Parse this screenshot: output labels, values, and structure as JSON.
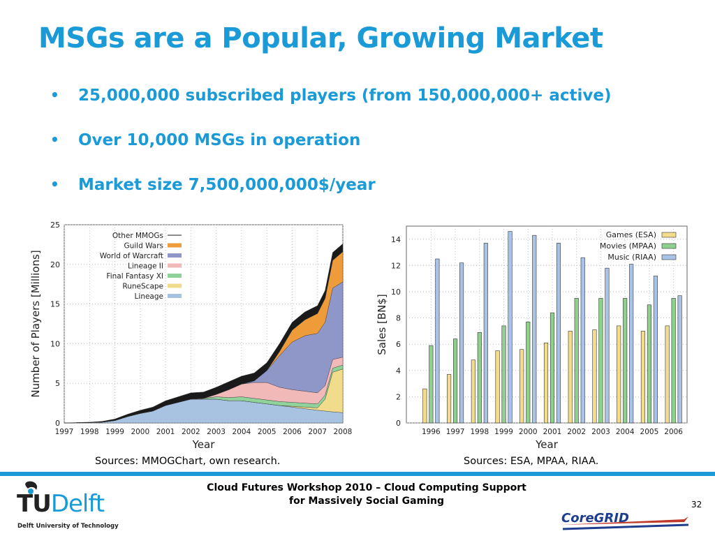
{
  "slide": {
    "title": "MSGs are a Popular, Growing Market",
    "bullets": [
      "25,000,000 subscribed players (from 150,000,000+ active)",
      "Over 10,000 MSGs in operation",
      "Market size 7,500,000,000$/year"
    ],
    "bullet_symbol": "•",
    "source_left": "Sources: MMOGChart, own research.",
    "source_right": "Sources: ESA, MPAA, RIAA.",
    "footer_line1": "Cloud Futures Workshop 2010 – Cloud Computing Support",
    "footer_line2": "for Massively Social Gaming",
    "page_number": "32",
    "logo_tu": "TU",
    "logo_delft": "Delft",
    "logo_sub": "Delft University of Technology",
    "logo_coregrid": "CoreGRID",
    "accent_color": "#1a9ad6"
  },
  "chart_data": [
    {
      "type": "area",
      "stacked": true,
      "xlabel": "Year",
      "ylabel": "Number of Players [Millions]",
      "ylim": [
        0,
        25
      ],
      "xlim": [
        1997,
        2008
      ],
      "yticks": [
        0,
        5,
        10,
        15,
        20,
        25
      ],
      "xticks": [
        1997,
        1998,
        1999,
        2000,
        2001,
        2002,
        2003,
        2004,
        2005,
        2006,
        2007,
        2008
      ],
      "legend_position": "top-left",
      "x": [
        1997,
        1998,
        1998.5,
        1999,
        1999.5,
        2000,
        2000.5,
        2001,
        2001.5,
        2002,
        2002.5,
        2003,
        2003.5,
        2004,
        2004.5,
        2005,
        2005.5,
        2006,
        2006.5,
        2007,
        2007.3,
        2007.6,
        2008
      ],
      "series": [
        {
          "name": "Lineage",
          "color": "#a8c3e2",
          "values": [
            0,
            0.05,
            0.1,
            0.3,
            0.8,
            1.2,
            1.5,
            2.2,
            2.6,
            3.0,
            3.0,
            3.0,
            2.8,
            2.8,
            2.6,
            2.4,
            2.2,
            2.0,
            1.8,
            1.6,
            1.5,
            1.4,
            1.3
          ]
        },
        {
          "name": "RuneScape",
          "color": "#f1dc8b",
          "values": [
            0,
            0,
            0,
            0,
            0,
            0,
            0,
            0,
            0,
            0,
            0,
            0,
            0,
            0,
            0,
            0,
            0,
            0.1,
            0.2,
            0.3,
            1.5,
            5.0,
            5.5
          ]
        },
        {
          "name": "Final Fantasy XI",
          "color": "#8fd39b",
          "values": [
            0,
            0,
            0,
            0,
            0,
            0,
            0,
            0,
            0,
            0,
            0.1,
            0.3,
            0.4,
            0.5,
            0.5,
            0.5,
            0.5,
            0.5,
            0.5,
            0.5,
            0.5,
            0.5,
            0.5
          ]
        },
        {
          "name": "Lineage II",
          "color": "#f2b9b9",
          "values": [
            0,
            0,
            0,
            0,
            0,
            0,
            0,
            0,
            0,
            0,
            0,
            0.3,
            1.0,
            1.6,
            2.0,
            2.2,
            1.8,
            1.6,
            1.5,
            1.4,
            1.2,
            1.1,
            1.0
          ]
        },
        {
          "name": "World of Warcraft",
          "color": "#8e97c8",
          "values": [
            0,
            0,
            0,
            0,
            0,
            0,
            0,
            0,
            0,
            0,
            0,
            0,
            0,
            0,
            0.2,
            1.5,
            4.0,
            6.0,
            7.0,
            7.5,
            8.0,
            9.0,
            9.5
          ]
        },
        {
          "name": "Guild Wars",
          "color": "#ee9b3a",
          "values": [
            0,
            0,
            0,
            0,
            0,
            0,
            0,
            0,
            0,
            0,
            0,
            0,
            0,
            0,
            0,
            0,
            0.5,
            1.5,
            2.0,
            2.5,
            3.0,
            3.5,
            3.8
          ]
        },
        {
          "name": "Other MMOGs",
          "color": "#1a1a1a",
          "values": [
            0,
            0.05,
            0.1,
            0.2,
            0.3,
            0.4,
            0.5,
            0.6,
            0.7,
            0.8,
            0.8,
            0.9,
            1.0,
            1.0,
            1.0,
            1.0,
            1.0,
            1.0,
            1.0,
            1.0,
            1.0,
            1.0,
            1.0
          ]
        }
      ]
    },
    {
      "type": "bar",
      "xlabel": "Year",
      "ylabel": "Sales [BN$]",
      "ylim": [
        0,
        15
      ],
      "yticks": [
        0,
        2,
        4,
        6,
        8,
        10,
        12,
        14
      ],
      "legend_position": "top-right",
      "categories": [
        "1996",
        "1997",
        "1998",
        "1999",
        "2000",
        "2001",
        "2002",
        "2003",
        "2004",
        "2005",
        "2006"
      ],
      "series": [
        {
          "name": "Games (ESA)",
          "color": "#f3dc8c",
          "values": [
            2.6,
            3.7,
            4.8,
            5.5,
            5.6,
            6.1,
            7.0,
            7.1,
            7.4,
            7.0,
            7.4
          ]
        },
        {
          "name": "Movies (MPAA)",
          "color": "#8fd08f",
          "values": [
            5.9,
            6.4,
            6.9,
            7.4,
            7.7,
            8.4,
            9.5,
            9.5,
            9.5,
            9.0,
            9.5
          ]
        },
        {
          "name": "Music (RIAA)",
          "color": "#a9c3e6",
          "values": [
            12.5,
            12.2,
            13.7,
            14.6,
            14.3,
            13.7,
            12.6,
            11.8,
            12.1,
            11.2,
            9.7
          ]
        }
      ]
    }
  ]
}
